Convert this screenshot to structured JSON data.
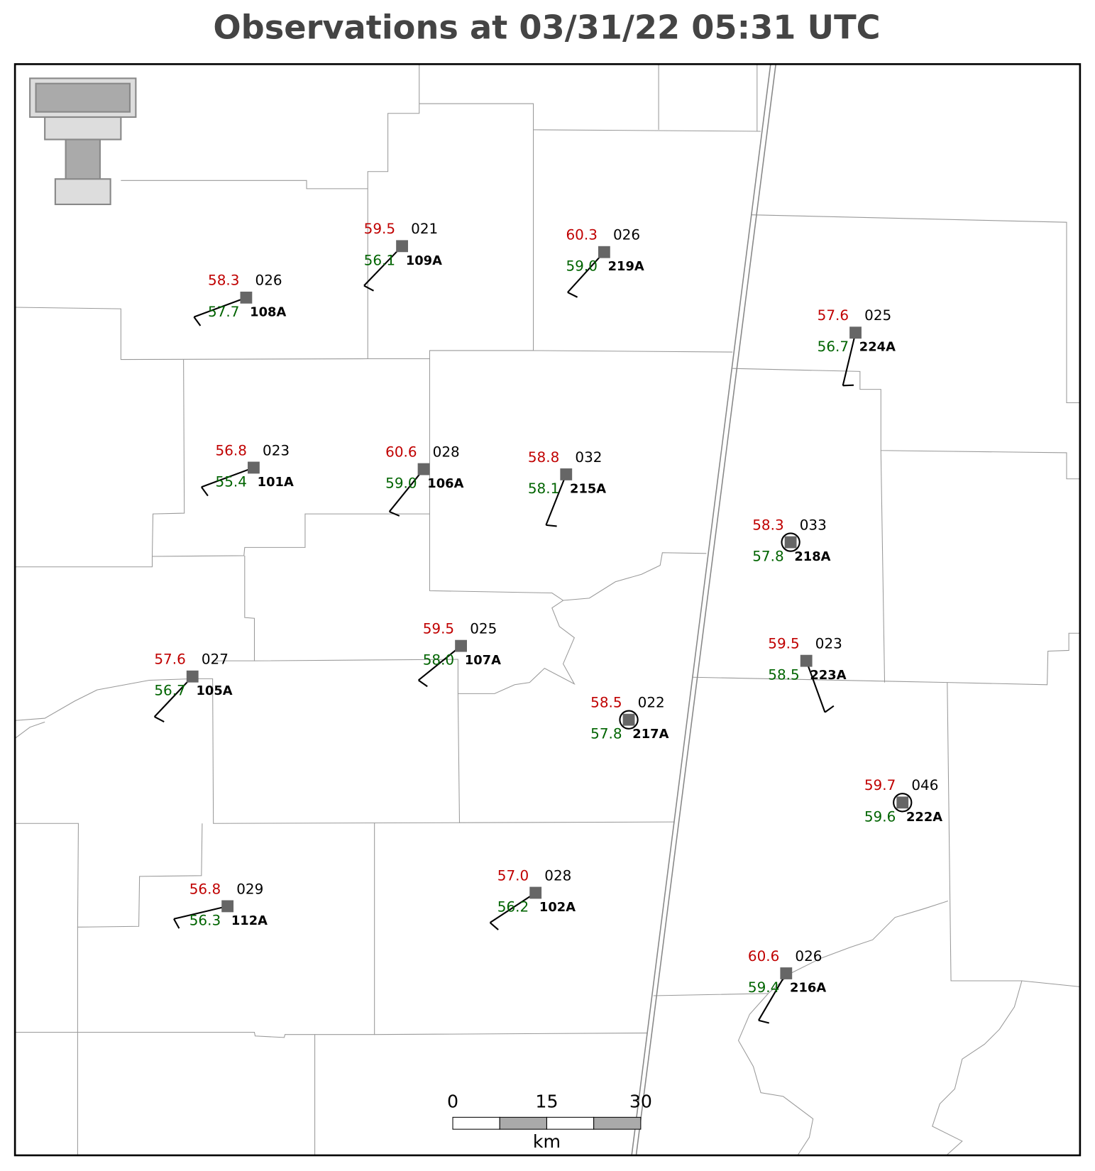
{
  "title": "Observations at 03/31/22 05:31 UTC",
  "stations": [
    {
      "id": "108A",
      "temperature": "58.3",
      "dewpoint": "57.7",
      "pressure": "026"
    },
    {
      "id": "109A",
      "temperature": "59.5",
      "dewpoint": "56.1",
      "pressure": "021"
    },
    {
      "id": "219A",
      "temperature": "60.3",
      "dewpoint": "59.0",
      "pressure": "026"
    },
    {
      "id": "224A",
      "temperature": "57.6",
      "dewpoint": "56.7",
      "pressure": "025"
    },
    {
      "id": "101A",
      "temperature": "56.8",
      "dewpoint": "55.4",
      "pressure": "023"
    },
    {
      "id": "106A",
      "temperature": "60.6",
      "dewpoint": "59.0",
      "pressure": "028"
    },
    {
      "id": "215A",
      "temperature": "58.8",
      "dewpoint": "58.1",
      "pressure": "032"
    },
    {
      "id": "218A",
      "temperature": "58.3",
      "dewpoint": "57.8",
      "pressure": "033"
    },
    {
      "id": "107A",
      "temperature": "59.5",
      "dewpoint": "58.0",
      "pressure": "025"
    },
    {
      "id": "105A",
      "temperature": "57.6",
      "dewpoint": "56.7",
      "pressure": "027"
    },
    {
      "id": "223A",
      "temperature": "59.5",
      "dewpoint": "58.5",
      "pressure": "023"
    },
    {
      "id": "217A",
      "temperature": "58.5",
      "dewpoint": "57.8",
      "pressure": "022"
    },
    {
      "id": "222A",
      "temperature": "59.7",
      "dewpoint": "59.6",
      "pressure": "046"
    },
    {
      "id": "112A",
      "temperature": "56.8",
      "dewpoint": "56.3",
      "pressure": "029"
    },
    {
      "id": "102A",
      "temperature": "57.0",
      "dewpoint": "56.2",
      "pressure": "028"
    },
    {
      "id": "216A",
      "temperature": "60.6",
      "dewpoint": "59.4",
      "pressure": "026"
    }
  ],
  "scale_bar": {
    "ticks": [
      0,
      15,
      30
    ],
    "unit": "km"
  }
}
